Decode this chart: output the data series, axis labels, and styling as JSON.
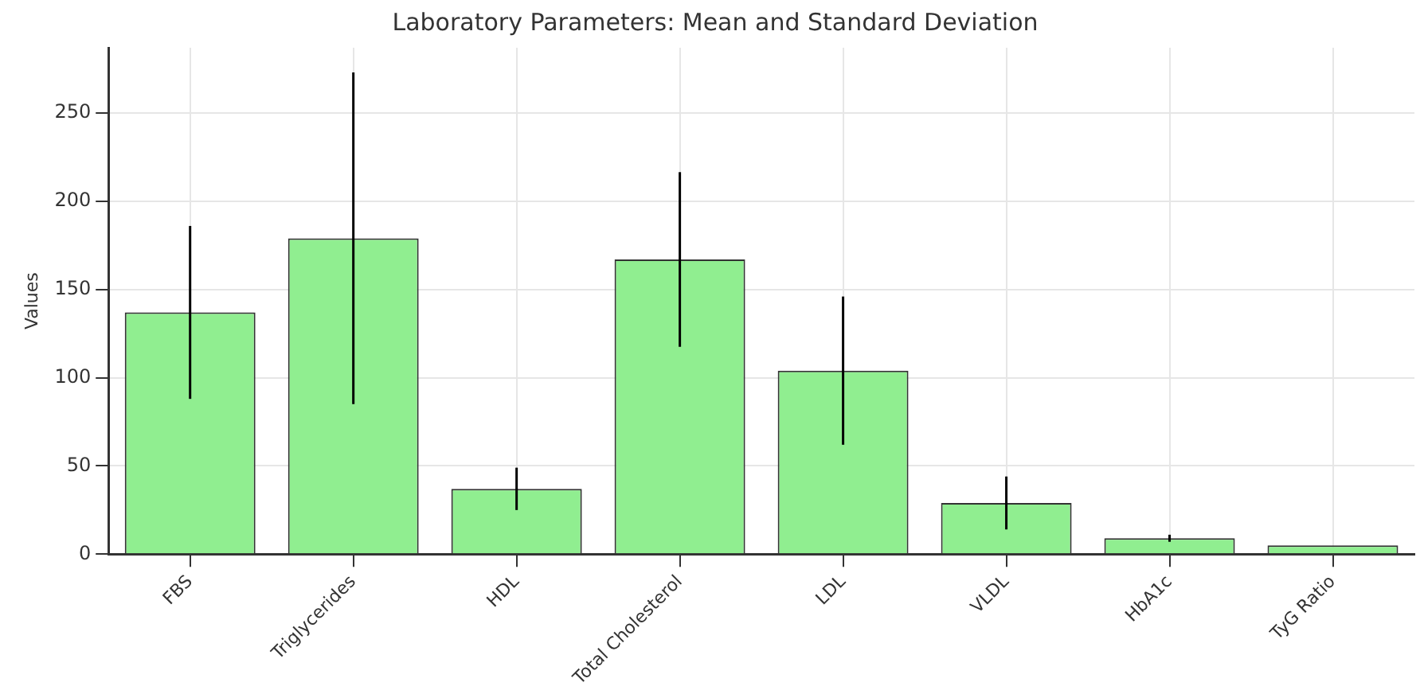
{
  "chart_data": {
    "type": "bar",
    "title": "Laboratory Parameters: Mean and Standard Deviation",
    "ylabel": "Values",
    "categories": [
      "FBS",
      "Triglycerides",
      "HDL",
      "Total Cholesterol",
      "LDL",
      "VLDL",
      "HbA1c",
      "TyG Ratio"
    ],
    "values": [
      137,
      179,
      37,
      167,
      104,
      29,
      9,
      5
    ],
    "errors": [
      49,
      94,
      12,
      49.5,
      42,
      15,
      2,
      null
    ],
    "color": "#90ee90",
    "ylim": [
      0,
      287
    ],
    "yticks": [
      0,
      50,
      100,
      150,
      200,
      250
    ],
    "grid": true,
    "legend": false
  }
}
